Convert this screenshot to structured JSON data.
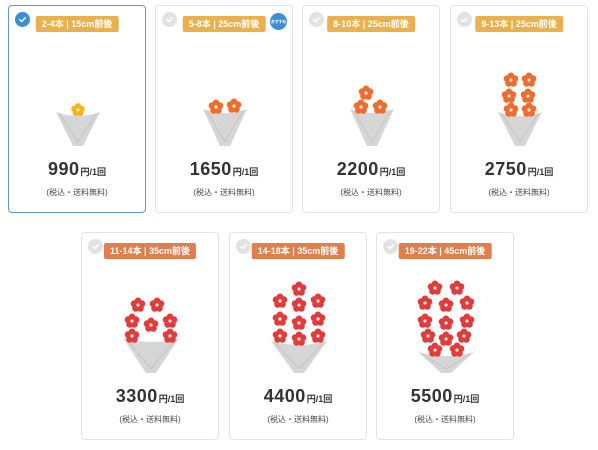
{
  "plans": [
    {
      "tag": "2-4本 | 15cm前後",
      "price": "990",
      "unit": "円/1回",
      "note": "(税込・送料無料)",
      "tag_color": "#e9b04c",
      "flower_color": "#f5b41c",
      "flowers": 1,
      "selected": true,
      "badge": ""
    },
    {
      "tag": "5-8本 | 25cm前後",
      "price": "1650",
      "unit": "円/1回",
      "note": "(税込・送料無料)",
      "tag_color": "#e9b04c",
      "flower_color": "#ef6c2c",
      "flowers": 2,
      "selected": false,
      "badge": "おすすめ"
    },
    {
      "tag": "8-10本 | 25cm前後",
      "price": "2200",
      "unit": "円/1回",
      "note": "(税込・送料無料)",
      "tag_color": "#e9b04c",
      "flower_color": "#ef6c2c",
      "flowers": 3,
      "selected": false,
      "badge": ""
    },
    {
      "tag": "9-13本 | 25cm前後",
      "price": "2750",
      "unit": "円/1回",
      "note": "(税込・送料無料)",
      "tag_color": "#e9b04c",
      "flower_color": "#ef6c2c",
      "flowers": 6,
      "selected": false,
      "badge": ""
    },
    {
      "tag": "11-14本 | 35cm前後",
      "price": "3300",
      "unit": "円/1回",
      "note": "(税込・送料無料)",
      "tag_color": "#de7f4d",
      "flower_color": "#e03c3c",
      "flowers": 7,
      "selected": false,
      "badge": ""
    },
    {
      "tag": "14-18本 | 35cm前後",
      "price": "4400",
      "unit": "円/1回",
      "note": "(税込・送料無料)",
      "tag_color": "#de7f4d",
      "flower_color": "#e03c3c",
      "flowers": 10,
      "selected": false,
      "badge": ""
    },
    {
      "tag": "19-22本 | 45cm前後",
      "price": "5500",
      "unit": "円/1回",
      "note": "(税込・送料無料)",
      "tag_color": "#de7f4d",
      "flower_color": "#e03c3c",
      "flowers": 13,
      "selected": false,
      "badge": ""
    }
  ]
}
